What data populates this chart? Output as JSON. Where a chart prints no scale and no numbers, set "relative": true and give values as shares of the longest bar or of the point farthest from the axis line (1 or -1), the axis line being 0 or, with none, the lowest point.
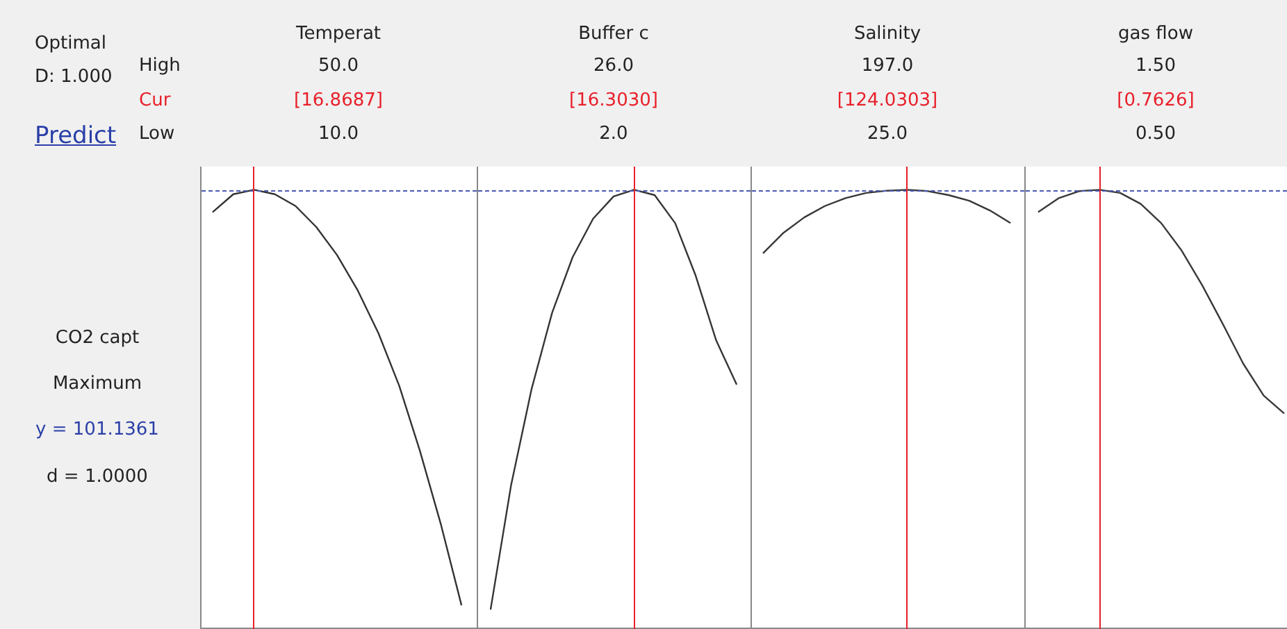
{
  "chart_data": [
    {
      "type": "other",
      "annotations": [
        "Optimal",
        "D: 1.000",
        "Predict",
        "High",
        "Cur",
        "Low",
        "CO2 capt",
        "Maximum",
        "y = 101.1361",
        "d = 1.0000"
      ]
    },
    {
      "type": "line",
      "title": "Temperat",
      "relative": true,
      "annotations": [
        "50.0",
        "[16.8687]",
        "10.0"
      ],
      "marker": "none",
      "categories": [
        null,
        null,
        null,
        null,
        null,
        null,
        null,
        null,
        null,
        null,
        null,
        null,
        null
      ],
      "series": [
        {
          "color": "#333333",
          "values": [
            0.949,
            0.99,
            1,
            0.99,
            0.963,
            0.915,
            0.851,
            0.77,
            0.672,
            0.552,
            0.403,
            0.237,
            0.051
          ]
        }
      ]
    },
    {
      "type": "line",
      "title": "Buffer c",
      "relative": true,
      "annotations": [
        "26.0",
        "[16.3030]",
        "2.0"
      ],
      "marker": "none",
      "categories": [
        null,
        null,
        null,
        null,
        null,
        null,
        null,
        null,
        null,
        null,
        null,
        null,
        null
      ],
      "series": [
        {
          "color": "#353535",
          "values": [
            0.041,
            0.325,
            0.545,
            0.719,
            0.846,
            0.934,
            0.985,
            1,
            0.988,
            0.924,
            0.804,
            0.656,
            0.555
          ]
        }
      ]
    },
    {
      "type": "line",
      "title": "Salinity",
      "relative": true,
      "annotations": [
        "197.0",
        "[124.0303]",
        "25.0"
      ],
      "marker": "none",
      "categories": [
        null,
        null,
        null,
        null,
        null,
        null,
        null,
        null,
        null,
        null,
        null,
        null,
        null
      ],
      "series": [
        {
          "color": "#373737",
          "values": [
            0.855,
            0.902,
            0.937,
            0.963,
            0.981,
            0.993,
            0.998,
            1,
            0.997,
            0.988,
            0.975,
            0.953,
            0.924
          ]
        }
      ]
    },
    {
      "type": "line",
      "title": "gas flow",
      "relative": true,
      "annotations": [
        "1.50",
        "[0.7626]",
        "0.50"
      ],
      "marker": "none",
      "categories": [
        null,
        null,
        null,
        null,
        null,
        null,
        null,
        null,
        null,
        null,
        null,
        null,
        null
      ],
      "series": [
        {
          "color": "#393939",
          "values": [
            0.949,
            0.981,
            0.997,
            1,
            0.993,
            0.968,
            0.924,
            0.861,
            0.782,
            0.694,
            0.603,
            0.53,
            0.489
          ]
        }
      ]
    }
  ]
}
